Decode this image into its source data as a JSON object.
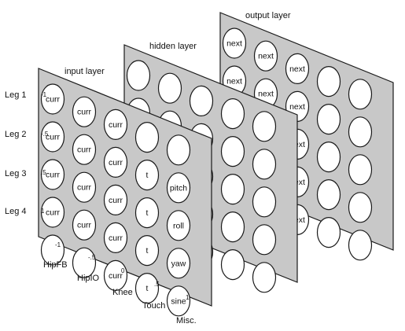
{
  "colors": {
    "plate": "#c8c8c8",
    "node_fill": "#ffffff",
    "stroke": "#1a1a1a"
  },
  "layers": {
    "output": {
      "title": "output layer",
      "nodes": [
        [
          "next",
          "next",
          "next",
          "",
          ""
        ],
        [
          "next",
          "next",
          "next",
          "",
          ""
        ],
        [
          "",
          "",
          "next",
          "",
          ""
        ],
        [
          "",
          "",
          "next",
          "",
          ""
        ],
        [
          "",
          "",
          "next",
          "",
          ""
        ]
      ]
    },
    "hidden": {
      "title": "hidden layer",
      "nodes": [
        [
          "",
          "",
          "",
          "",
          ""
        ],
        [
          "",
          "",
          "",
          "",
          ""
        ],
        [
          "",
          "",
          "",
          "",
          ""
        ],
        [
          "",
          "",
          "",
          "",
          ""
        ],
        [
          "",
          "",
          "",
          "",
          ""
        ]
      ]
    },
    "input": {
      "title": "input layer",
      "nodes": [
        [
          "curr",
          "curr",
          "curr",
          "",
          ""
        ],
        [
          "curr",
          "curr",
          "curr",
          "t",
          "pitch"
        ],
        [
          "curr",
          "curr",
          "curr",
          "t",
          "roll"
        ],
        [
          "curr",
          "curr",
          "curr",
          "t",
          "yaw"
        ],
        [
          "",
          "",
          "curr",
          "t",
          "sine"
        ]
      ]
    }
  },
  "row_labels": [
    "Leg 1",
    "Leg 2",
    "Leg 3",
    "Leg 4"
  ],
  "row_ticks": [
    "-1",
    "-.5",
    ".5",
    "1"
  ],
  "col_labels": [
    "HipFB",
    "HipIO",
    "Knee",
    "Touch",
    "Misc."
  ],
  "col_ticks": [
    "-1",
    "-.5",
    "0",
    ".5",
    "1"
  ]
}
